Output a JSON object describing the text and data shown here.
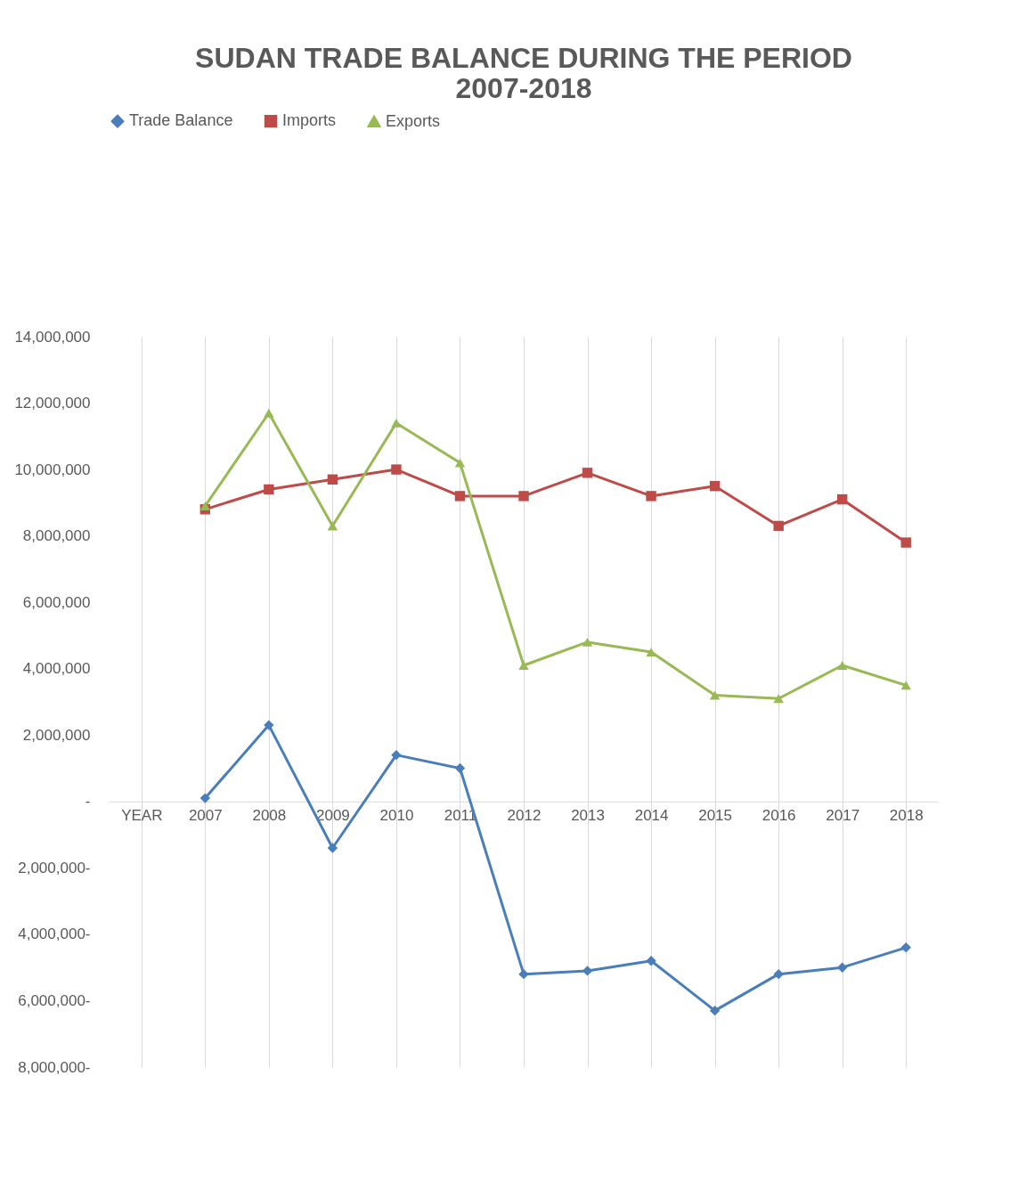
{
  "chart_data": {
    "type": "line",
    "title": "SUDAN TRADE BALANCE DURING THE PERIOD 2007-2018",
    "categories": [
      "YEAR",
      "2007",
      "2008",
      "2009",
      "2010",
      "2011",
      "2012",
      "2013",
      "2014",
      "2015",
      "2016",
      "2017",
      "2018"
    ],
    "series": [
      {
        "name": "Trade Balance",
        "color": "#4a7ebb",
        "marker": "diamond",
        "values": [
          null,
          100000,
          2300000,
          -1400000,
          1400000,
          1000000,
          -5200000,
          -5100000,
          -4800000,
          -6300000,
          -5200000,
          -5000000,
          -4400000
        ]
      },
      {
        "name": "Imports",
        "color": "#be4b48",
        "marker": "square",
        "values": [
          null,
          8800000,
          9400000,
          9700000,
          10000000,
          9200000,
          9200000,
          9900000,
          9200000,
          9500000,
          8300000,
          9100000,
          7800000
        ]
      },
      {
        "name": "Exports",
        "color": "#98b954",
        "marker": "triangle",
        "values": [
          null,
          8900000,
          11700000,
          8300000,
          11400000,
          10200000,
          4100000,
          4800000,
          4500000,
          3200000,
          3100000,
          4100000,
          3500000
        ]
      }
    ],
    "ylim": [
      -8000000,
      14000000
    ],
    "yticks": [
      {
        "value": -8000000,
        "label": "8,000,000-"
      },
      {
        "value": -6000000,
        "label": "6,000,000-"
      },
      {
        "value": -4000000,
        "label": "4,000,000-"
      },
      {
        "value": -2000000,
        "label": "2,000,000-"
      },
      {
        "value": 0,
        "label": "-"
      },
      {
        "value": 2000000,
        "label": "2,000,000"
      },
      {
        "value": 4000000,
        "label": "4,000,000"
      },
      {
        "value": 6000000,
        "label": "6,000,000"
      },
      {
        "value": 8000000,
        "label": "8,000,000"
      },
      {
        "value": 10000000,
        "label": "10,000,000"
      },
      {
        "value": 12000000,
        "label": "12,000,000"
      },
      {
        "value": 14000000,
        "label": "14,000,000"
      }
    ],
    "grid": "x",
    "legend": "top",
    "line_style": "solid"
  }
}
